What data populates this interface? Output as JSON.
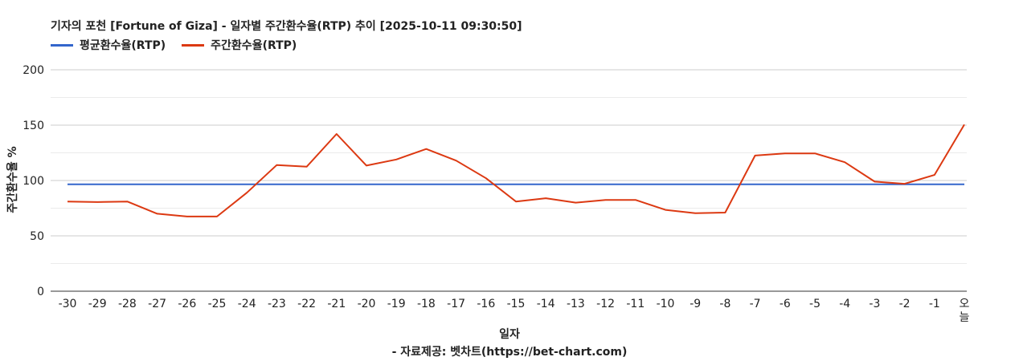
{
  "title": "기자의 포천 [Fortune of Giza] - 일자별 주간환수율(RTP) 추이 [2025-10-11 09:30:50]",
  "source_note": "- 자료제공: 벳차트(https://bet-chart.com)",
  "chart_data": {
    "type": "line",
    "title": "기자의 포천 [Fortune of Giza] - 일자별 주간환수율(RTP) 추이 [2025-10-11 09:30:50]",
    "xlabel": "일자",
    "ylabel": "주간환수율 %",
    "ylim": [
      0,
      200
    ],
    "yticks": [
      0,
      50,
      100,
      150,
      200
    ],
    "grid": true,
    "legend_position": "top-left",
    "categories": [
      "-30",
      "-29",
      "-28",
      "-27",
      "-26",
      "-25",
      "-24",
      "-23",
      "-22",
      "-21",
      "-20",
      "-19",
      "-18",
      "-17",
      "-16",
      "-15",
      "-14",
      "-13",
      "-12",
      "-11",
      "-10",
      "-9",
      "-8",
      "-7",
      "-6",
      "-5",
      "-4",
      "-3",
      "-2",
      "-1",
      "오늘"
    ],
    "series": [
      {
        "name": "평균환수율(RTP)",
        "color": "#3366cc",
        "values": [
          96.5,
          96.5,
          96.5,
          96.5,
          96.5,
          96.5,
          96.5,
          96.5,
          96.5,
          96.5,
          96.5,
          96.5,
          96.5,
          96.5,
          96.5,
          96.5,
          96.5,
          96.5,
          96.5,
          96.5,
          96.5,
          96.5,
          96.5,
          96.5,
          96.5,
          96.5,
          96.5,
          96.5,
          96.5,
          96.5,
          96.5
        ]
      },
      {
        "name": "주간환수율(RTP)",
        "color": "#dc3912",
        "values": [
          81,
          80.5,
          81,
          70,
          67.5,
          67.5,
          89,
          114,
          112.5,
          142,
          113.5,
          119,
          128.5,
          118,
          102,
          81,
          84,
          80,
          82.5,
          82.5,
          73.5,
          70.5,
          71,
          122.5,
          124.5,
          124.5,
          116.5,
          99,
          97,
          105,
          150.5
        ]
      }
    ]
  }
}
